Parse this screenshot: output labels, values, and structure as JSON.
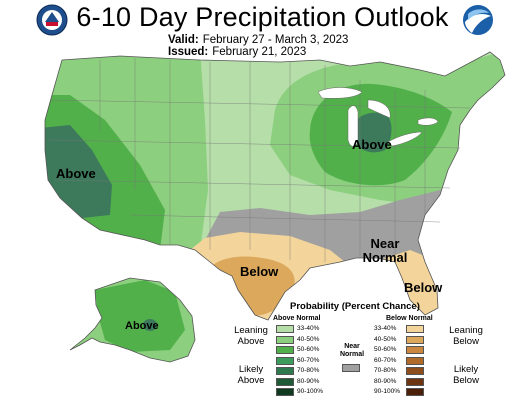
{
  "title": "6-10 Day Precipitation Outlook",
  "valid": {
    "label": "Valid:",
    "value": "February 27 - March 3, 2023"
  },
  "issued": {
    "label": "Issued:",
    "value": "February 21, 2023"
  },
  "logos": {
    "left": "noaa-doc-seal-icon",
    "right": "noaa-logo-icon"
  },
  "map_labels": {
    "west_above": "Above",
    "greatlakes_above": "Above",
    "near_normal": "Near Normal",
    "texas_below": "Below",
    "florida_below": "Below",
    "alaska_above": "Above"
  },
  "colors": {
    "above_33_40": "#b5dea8",
    "above_40_50": "#8ccf7e",
    "above_50_60": "#52b04b",
    "above_60_70": "#3d9b5c",
    "above_70_80": "#2e7a4e",
    "above_80_90": "#1e5a36",
    "above_90_100": "#0f3a1f",
    "near_normal": "#a0a0a0",
    "below_33_40": "#f3d49a",
    "below_40_50": "#dba85c",
    "below_50_60": "#c9873f",
    "below_60_70": "#b06a2a",
    "below_70_80": "#8e4e1c",
    "below_80_90": "#6d3412",
    "below_90_100": "#4a2009"
  },
  "legend": {
    "title": "Probability (Percent Chance)",
    "above_header": "Above Normal",
    "below_header": "Below Normal",
    "near_header": "Near Normal",
    "leaning_above": "Leaning Above",
    "likely_above": "Likely Above",
    "leaning_below": "Leaning Below",
    "likely_below": "Likely Below",
    "ranges": [
      "33-40%",
      "40-50%",
      "50-60%",
      "60-70%",
      "70-80%",
      "80-90%",
      "90-100%"
    ]
  }
}
